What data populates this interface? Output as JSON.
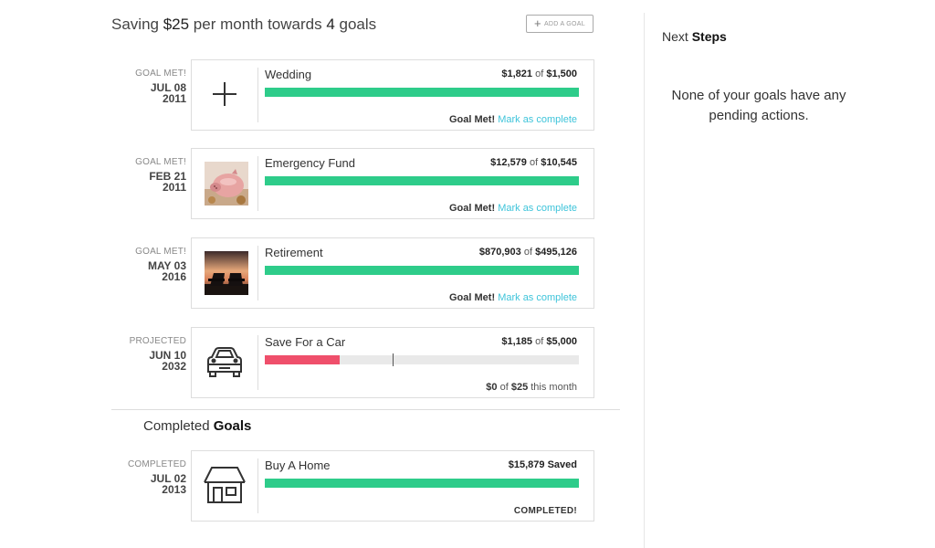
{
  "header": {
    "prefix": "Saving ",
    "amount": "$25",
    "middle": " per month towards ",
    "count": "4",
    "suffix": " goals",
    "add_button": "ADD A GOAL"
  },
  "goals": [
    {
      "status": "GOAL MET!",
      "date": "JUL 08",
      "year": "2011",
      "name": "Wedding",
      "current": "$1,821",
      "of": "of",
      "target": "$1,500",
      "progress": 1.0,
      "bar_color": "#2ecc8a",
      "met_label": "Goal Met!",
      "link": "Mark as complete",
      "icon": "plus-icon"
    },
    {
      "status": "GOAL MET!",
      "date": "FEB 21",
      "year": "2011",
      "name": "Emergency Fund",
      "current": "$12,579",
      "of": "of",
      "target": "$10,545",
      "progress": 1.0,
      "bar_color": "#2ecc8a",
      "met_label": "Goal Met!",
      "link": "Mark as complete",
      "icon": "piggy-bank-photo"
    },
    {
      "status": "GOAL MET!",
      "date": "MAY 03",
      "year": "2016",
      "name": "Retirement",
      "current": "$870,903",
      "of": "of",
      "target": "$495,126",
      "progress": 1.0,
      "bar_color": "#2ecc8a",
      "met_label": "Goal Met!",
      "link": "Mark as complete",
      "icon": "beach-chairs-photo"
    },
    {
      "status": "PROJECTED",
      "date": "JUN 10",
      "year": "2032",
      "name": "Save For a Car",
      "current": "$1,185",
      "of": "of",
      "target": "$5,000",
      "progress": 0.237,
      "marker": 0.406,
      "bar_color": "#ef4f6b",
      "month_current": "$0",
      "month_of": "of",
      "month_target": "$25",
      "month_label": "this month",
      "icon": "car-icon"
    }
  ],
  "completed": {
    "title_prefix": "Completed ",
    "title_bold": "Goals",
    "goal": {
      "status": "COMPLETED",
      "date": "JUL 02",
      "year": "2013",
      "name": "Buy A Home",
      "amount": "$15,879 Saved",
      "progress": 1.0,
      "bar_color": "#2ecc8a",
      "foot": "COMPLETED!",
      "icon": "house-icon"
    }
  },
  "sidebar": {
    "title_prefix": "Next ",
    "title_bold": "Steps",
    "message": "None of your goals have any pending actions."
  }
}
